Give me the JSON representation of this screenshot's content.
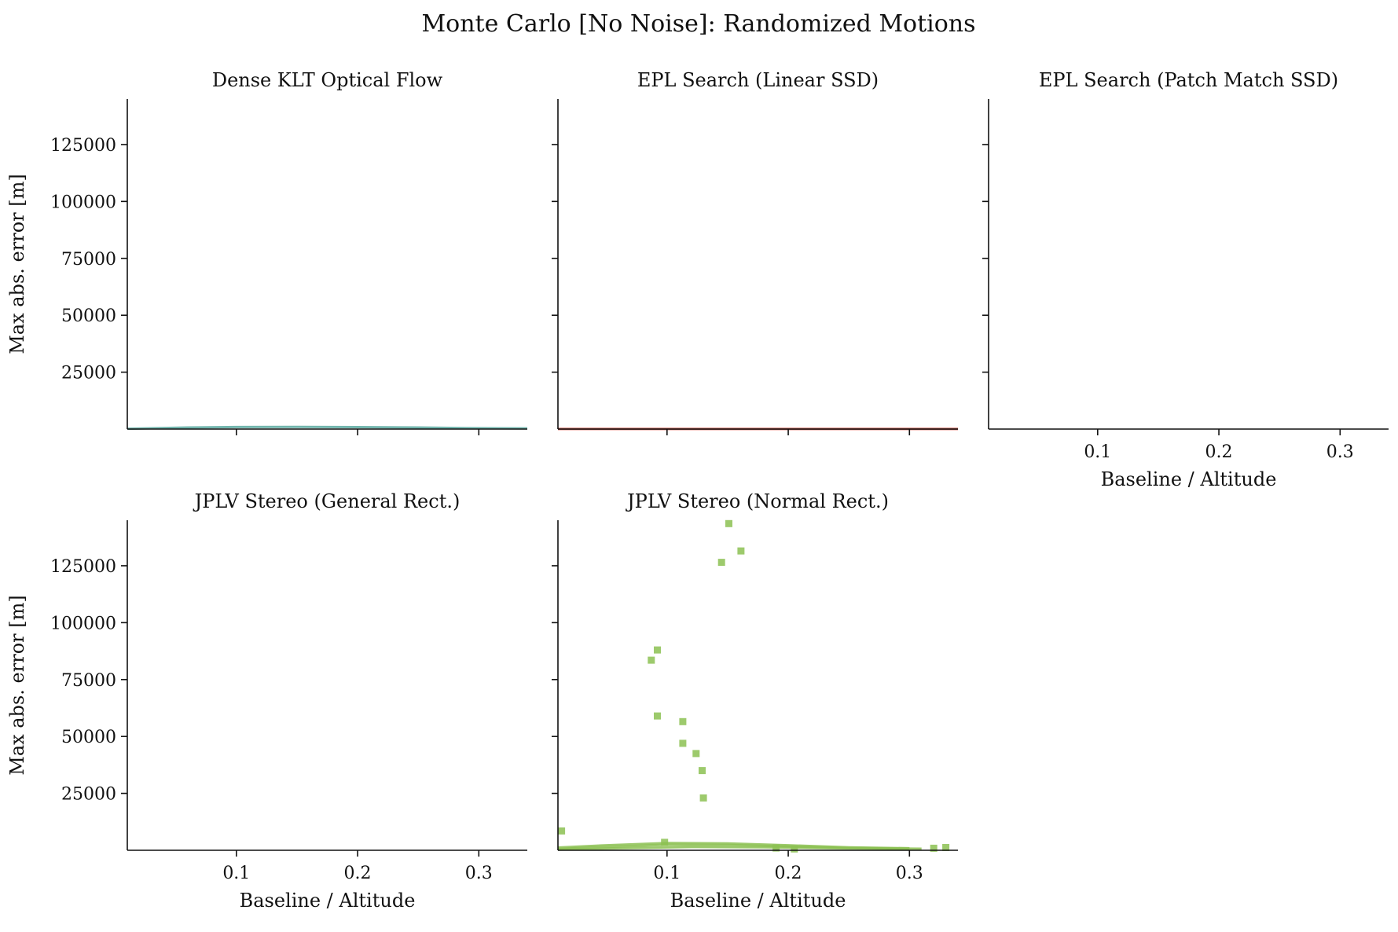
{
  "figure": {
    "title": "Monte Carlo [No Noise]: Randomized Motions"
  },
  "chart_data": [
    {
      "type": "line",
      "title": "Dense KLT Optical Flow",
      "xlabel": "",
      "ylabel": "Max abs. error [m]",
      "xlim": [
        0.01,
        0.34
      ],
      "ylim": [
        0,
        145000
      ],
      "xticks": [
        0.1,
        0.2,
        0.3
      ],
      "yticks": [
        25000,
        50000,
        75000,
        100000,
        125000
      ],
      "show_xticklabels": false,
      "show_yticklabels": true,
      "grid": false,
      "series": [
        {
          "color": "#5aa9a0",
          "style": "line",
          "x": [
            0.01,
            0.06,
            0.1,
            0.15,
            0.2,
            0.25,
            0.29,
            0.34
          ],
          "y": [
            150,
            700,
            900,
            950,
            850,
            700,
            400,
            300
          ]
        }
      ]
    },
    {
      "type": "line",
      "title": "EPL Search (Linear SSD)",
      "xlabel": "",
      "ylabel": "",
      "xlim": [
        0.01,
        0.34
      ],
      "ylim": [
        0,
        145000
      ],
      "xticks": [
        0.1,
        0.2,
        0.3
      ],
      "yticks": [
        25000,
        50000,
        75000,
        100000,
        125000
      ],
      "show_xticklabels": false,
      "show_yticklabels": false,
      "grid": false,
      "series": [
        {
          "color": "#c0392b",
          "style": "line",
          "x": [
            0.01,
            0.1,
            0.2,
            0.3,
            0.34
          ],
          "y": [
            20,
            30,
            30,
            25,
            20
          ]
        }
      ]
    },
    {
      "type": "line",
      "title": "EPL Search (Patch Match SSD)",
      "xlabel": "Baseline / Altitude",
      "ylabel": "",
      "xlim": [
        0.01,
        0.34
      ],
      "ylim": [
        0,
        145000
      ],
      "xticks": [
        0.1,
        0.2,
        0.3
      ],
      "yticks": [
        25000,
        50000,
        75000,
        100000,
        125000
      ],
      "show_xticklabels": true,
      "show_yticklabels": false,
      "grid": false,
      "series": []
    },
    {
      "type": "line",
      "title": "JPLV Stereo (General Rect.)",
      "xlabel": "Baseline / Altitude",
      "ylabel": "Max abs. error [m]",
      "xlim": [
        0.01,
        0.34
      ],
      "ylim": [
        0,
        145000
      ],
      "xticks": [
        0.1,
        0.2,
        0.3
      ],
      "yticks": [
        25000,
        50000,
        75000,
        100000,
        125000
      ],
      "show_xticklabels": true,
      "show_yticklabels": true,
      "grid": false,
      "series": []
    },
    {
      "type": "scatter",
      "title": "JPLV Stereo (Normal Rect.)",
      "xlabel": "Baseline / Altitude",
      "ylabel": "",
      "xlim": [
        0.01,
        0.34
      ],
      "ylim": [
        0,
        145000
      ],
      "xticks": [
        0.1,
        0.2,
        0.3
      ],
      "yticks": [
        25000,
        50000,
        75000,
        100000,
        125000
      ],
      "show_xticklabels": true,
      "show_yticklabels": false,
      "grid": false,
      "series": [
        {
          "color": "#8cc152",
          "style": "line",
          "x": [
            0.01,
            0.05,
            0.1,
            0.15,
            0.2,
            0.25,
            0.3
          ],
          "y": [
            1200,
            2200,
            3200,
            3000,
            2200,
            1300,
            900
          ]
        },
        {
          "color": "#8cc152",
          "style": "line",
          "x": [
            0.01,
            0.05,
            0.1,
            0.15,
            0.2,
            0.25,
            0.31
          ],
          "y": [
            600,
            1500,
            2400,
            2300,
            1700,
            1000,
            700
          ]
        },
        {
          "color": "#8cc152",
          "style": "line",
          "x": [
            0.01,
            0.06,
            0.12,
            0.18,
            0.24,
            0.3
          ],
          "y": [
            300,
            900,
            1400,
            1300,
            900,
            600
          ]
        },
        {
          "color": "#8cc152",
          "style": "scatter",
          "x": [
            0.013,
            0.087,
            0.092,
            0.092,
            0.098,
            0.113,
            0.113,
            0.124,
            0.129,
            0.13,
            0.145,
            0.151,
            0.161,
            0.19,
            0.205,
            0.32,
            0.33
          ],
          "y": [
            8500,
            83500,
            88000,
            59000,
            3500,
            56500,
            47000,
            42500,
            35000,
            23000,
            126500,
            143500,
            131500,
            1000,
            600,
            900,
            1200
          ]
        }
      ]
    }
  ]
}
